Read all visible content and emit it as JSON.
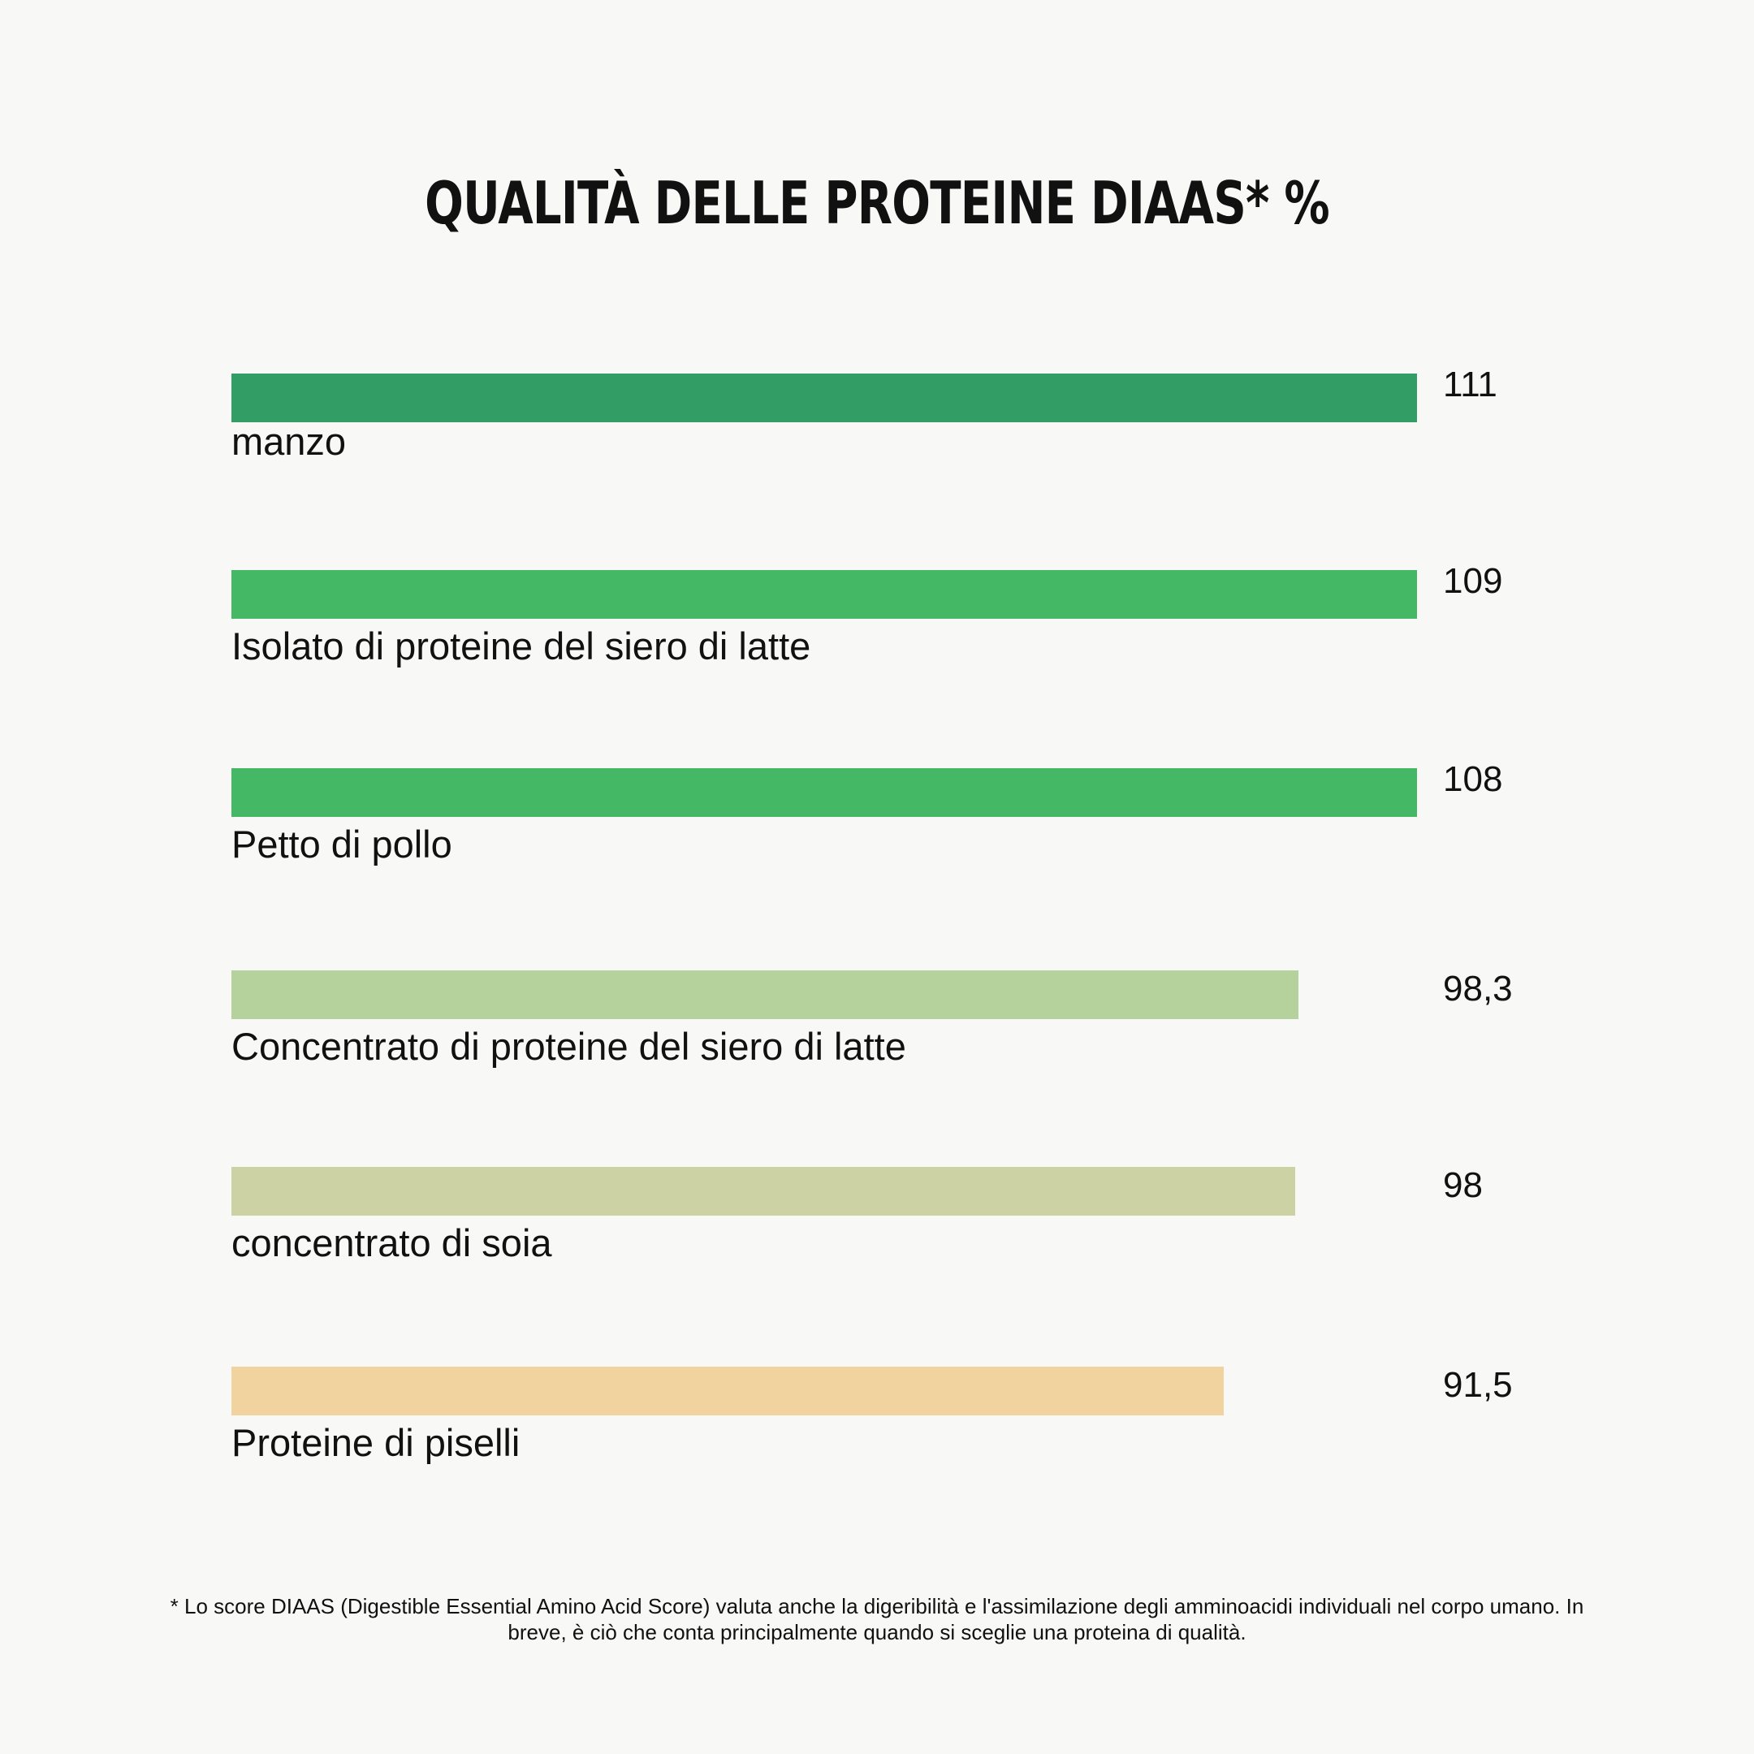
{
  "chart_data": {
    "type": "bar",
    "orientation": "horizontal",
    "title": "QUALITÀ DELLE PROTEINE DIAAS* %",
    "categories": [
      "manzo",
      "Isolato di proteine del siero di latte",
      "Petto di pollo",
      "Concentrato di proteine del siero di latte",
      "concentrato di soia",
      "Proteine di piselli"
    ],
    "values": [
      111,
      109,
      108,
      98.3,
      98,
      91.5
    ],
    "value_labels": [
      "111",
      "109",
      "108",
      "98,3",
      "98",
      "91,5"
    ],
    "colors": [
      "#329e66",
      "#44b864",
      "#44b864",
      "#b6d29c",
      "#cdd2a4",
      "#f1d39f"
    ],
    "grid": false,
    "legend": "none"
  },
  "footnote": "* Lo score DIAAS (Digestible Essential Amino Acid Score) valuta anche la digeribilità e l'assimilazione degli amminoacidi individuali nel corpo umano. In breve, è ciò che conta principalmente quando si sceglie una proteina di qualità."
}
